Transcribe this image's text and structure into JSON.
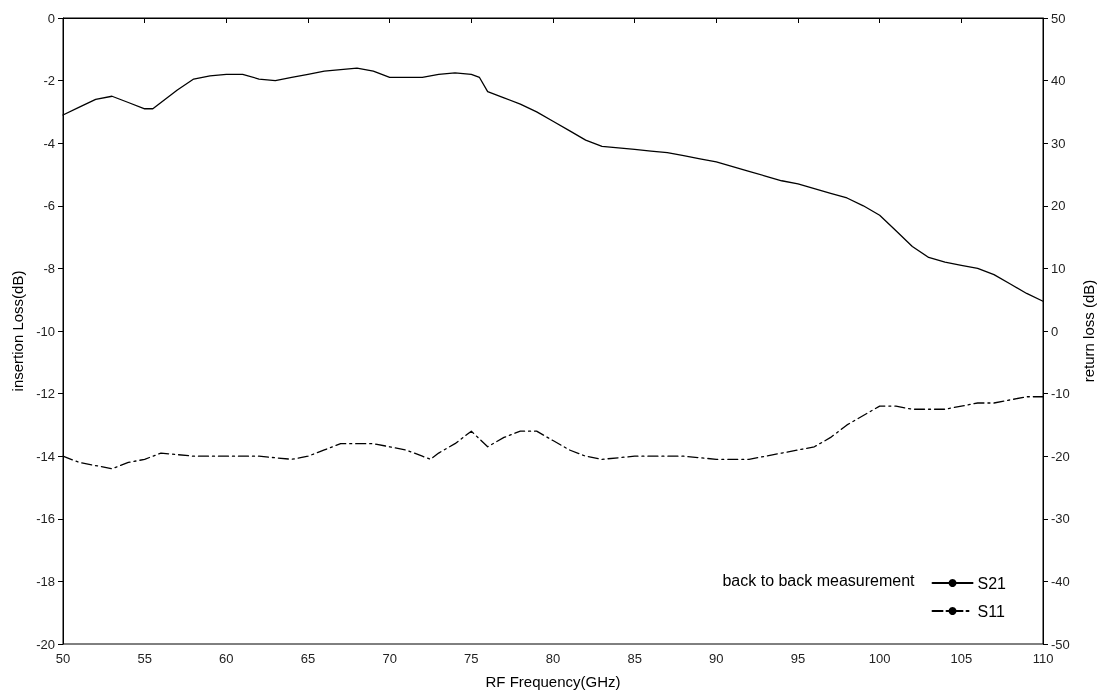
{
  "chart_data": {
    "type": "line",
    "xlabel": "RF Frequency(GHz)",
    "ylabel": "insertion Loss(dB)",
    "y2label": "return loss (dB)",
    "legend_title": "back to back measurement",
    "legend": "bottom right",
    "grid": false,
    "marker": "none",
    "xlim": [
      50,
      110
    ],
    "xticks": [
      50,
      55,
      60,
      65,
      70,
      75,
      80,
      85,
      90,
      95,
      100,
      105,
      110
    ],
    "ylim": [
      -20,
      0
    ],
    "yticks": [
      -20,
      -18,
      -16,
      -14,
      -12,
      -10,
      -8,
      -6,
      -4,
      -2,
      0
    ],
    "y2lim": [
      -50,
      50
    ],
    "y2ticks": [
      -50,
      -40,
      -30,
      -20,
      -10,
      0,
      10,
      20,
      30,
      40,
      50
    ],
    "series": [
      {
        "name": "S21",
        "color": "#000000",
        "line_style": "solid",
        "x": [
          50,
          51,
          52,
          53,
          54,
          55,
          55.5,
          56,
          57,
          58,
          59,
          60,
          61,
          62,
          63,
          64,
          65,
          66,
          67,
          68,
          69,
          70,
          71,
          72,
          73,
          74,
          75,
          75.5,
          76,
          77,
          78,
          79,
          80,
          81,
          82,
          83,
          84,
          85,
          86,
          87,
          88,
          89,
          90,
          91,
          92,
          93,
          94,
          95,
          96,
          97,
          98,
          99,
          100,
          101,
          102,
          103,
          104,
          105,
          106,
          107,
          108,
          109,
          110
        ],
        "values": [
          -3.1,
          -2.85,
          -2.6,
          -2.5,
          -2.7,
          -2.9,
          -2.9,
          -2.7,
          -2.3,
          -1.95,
          -1.85,
          -1.8,
          -1.8,
          -1.95,
          -2.0,
          -1.9,
          -1.8,
          -1.7,
          -1.65,
          -1.6,
          -1.7,
          -1.9,
          -1.9,
          -1.9,
          -1.8,
          -1.75,
          -1.8,
          -1.9,
          -2.35,
          -2.55,
          -2.75,
          -3.0,
          -3.3,
          -3.6,
          -3.9,
          -4.1,
          -4.15,
          -4.2,
          -4.25,
          -4.3,
          -4.4,
          -4.5,
          -4.6,
          -4.75,
          -4.9,
          -5.05,
          -5.2,
          -5.3,
          -5.45,
          -5.6,
          -5.75,
          -6.0,
          -6.3,
          -6.8,
          -7.3,
          -7.65,
          -7.8,
          -7.9,
          -8.0,
          -8.2,
          -8.5,
          -8.8,
          -9.05
        ]
      },
      {
        "name": "S11",
        "color": "#000000",
        "line_style": "dashed",
        "axis": "y2",
        "x": [
          50,
          51,
          52,
          53,
          54,
          55,
          56,
          58,
          60,
          62,
          64,
          65,
          66,
          67,
          68,
          69,
          70,
          71,
          72,
          72.5,
          73,
          74,
          75,
          76,
          77,
          78,
          79,
          80,
          81,
          82,
          83,
          85,
          88,
          90,
          92,
          93,
          94,
          95,
          96,
          97,
          98,
          99,
          100,
          101,
          102,
          103,
          104,
          105,
          106,
          107,
          108,
          109,
          110
        ],
        "values": [
          -20,
          -21,
          -21.5,
          -22,
          -21,
          -20.5,
          -19.5,
          -20,
          -20,
          -20,
          -20.5,
          -20,
          -19,
          -18,
          -18,
          -18,
          -18.5,
          -19,
          -20,
          -20.5,
          -19.5,
          -18,
          -16,
          -18.5,
          -17,
          -16,
          -16,
          -17.5,
          -19,
          -20,
          -20.5,
          -20,
          -20,
          -20.5,
          -20.5,
          -20,
          -19.5,
          -19,
          -18.5,
          -17,
          -15,
          -13.5,
          -12,
          -12,
          -12.5,
          -12.5,
          -12.5,
          -12,
          -11.5,
          -11.5,
          -11,
          -10.5,
          -10.5
        ]
      }
    ]
  }
}
